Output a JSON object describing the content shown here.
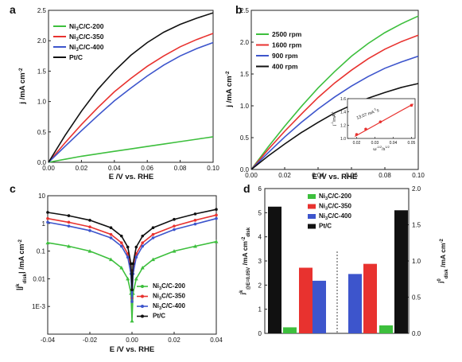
{
  "colors": {
    "green": "#3dbf3d",
    "red": "#e8322f",
    "blue": "#3d55cc",
    "black": "#111111"
  },
  "chart_data": [
    {
      "panel": "a",
      "type": "line",
      "xlabel": "E /V vs. RHE",
      "ylabel_parts": {
        "base": "j /mA cm",
        "sup": "-2"
      },
      "xlim": [
        0,
        0.1
      ],
      "ylim": [
        0,
        2.5
      ],
      "xticks": [
        "0.00",
        "0.02",
        "0.04",
        "0.06",
        "0.08",
        "0.10"
      ],
      "yticks": [
        "0.0",
        "0.5",
        "1.0",
        "1.5",
        "2.0",
        "2.5"
      ],
      "legend": "top-left",
      "series": [
        {
          "name_parts": [
            "Ni",
            "3",
            "C/C-200"
          ],
          "color": "#3dbf3d",
          "x": [
            0,
            0.01,
            0.02,
            0.03,
            0.04,
            0.05,
            0.06,
            0.07,
            0.08,
            0.09,
            0.1
          ],
          "y": [
            0,
            0.05,
            0.1,
            0.14,
            0.18,
            0.22,
            0.26,
            0.3,
            0.34,
            0.38,
            0.42
          ]
        },
        {
          "name_parts": [
            "Ni",
            "3",
            "C/C-350"
          ],
          "color": "#e8322f",
          "x": [
            0,
            0.01,
            0.02,
            0.03,
            0.04,
            0.05,
            0.06,
            0.07,
            0.08,
            0.09,
            0.1
          ],
          "y": [
            0,
            0.32,
            0.62,
            0.9,
            1.16,
            1.38,
            1.58,
            1.75,
            1.9,
            2.02,
            2.12
          ]
        },
        {
          "name_parts": [
            "Ni",
            "3",
            "C/C-400"
          ],
          "color": "#3d55cc",
          "x": [
            0,
            0.01,
            0.02,
            0.03,
            0.04,
            0.05,
            0.06,
            0.07,
            0.08,
            0.09,
            0.1
          ],
          "y": [
            0,
            0.26,
            0.52,
            0.77,
            1.01,
            1.22,
            1.42,
            1.6,
            1.75,
            1.87,
            1.97
          ]
        },
        {
          "name_parts": [
            "Pt/C"
          ],
          "color": "#111111",
          "x": [
            0,
            0.01,
            0.02,
            0.03,
            0.04,
            0.05,
            0.06,
            0.07,
            0.08,
            0.09,
            0.1
          ],
          "y": [
            0,
            0.44,
            0.84,
            1.2,
            1.5,
            1.76,
            1.97,
            2.14,
            2.27,
            2.37,
            2.46
          ]
        }
      ]
    },
    {
      "panel": "b",
      "type": "line",
      "xlabel": "E /V vs. RHE",
      "ylabel_parts": {
        "base": "j /mA cm",
        "sup": "-2"
      },
      "xlim": [
        0,
        0.1
      ],
      "ylim": [
        0,
        2.5
      ],
      "xticks": [
        "0.00",
        "0.02",
        "0.04",
        "0.06",
        "0.08",
        "0.10"
      ],
      "yticks": [
        "0.0",
        "0.5",
        "1.0",
        "1.5",
        "2.0",
        "2.5"
      ],
      "legend": "top-left",
      "series": [
        {
          "name_parts": [
            "2500 rpm"
          ],
          "color": "#3dbf3d",
          "x": [
            0,
            0.01,
            0.02,
            0.03,
            0.04,
            0.05,
            0.06,
            0.07,
            0.08,
            0.09,
            0.1
          ],
          "y": [
            0,
            0.35,
            0.68,
            0.99,
            1.28,
            1.54,
            1.78,
            1.98,
            2.15,
            2.29,
            2.41
          ]
        },
        {
          "name_parts": [
            "1600 rpm"
          ],
          "color": "#e8322f",
          "x": [
            0,
            0.01,
            0.02,
            0.03,
            0.04,
            0.05,
            0.06,
            0.07,
            0.08,
            0.09,
            0.1
          ],
          "y": [
            0,
            0.31,
            0.6,
            0.87,
            1.13,
            1.36,
            1.56,
            1.74,
            1.89,
            2.01,
            2.11
          ]
        },
        {
          "name_parts": [
            "900 rpm"
          ],
          "color": "#3d55cc",
          "x": [
            0,
            0.01,
            0.02,
            0.03,
            0.04,
            0.05,
            0.06,
            0.07,
            0.08,
            0.09,
            0.1
          ],
          "y": [
            0,
            0.26,
            0.51,
            0.74,
            0.95,
            1.14,
            1.31,
            1.46,
            1.59,
            1.69,
            1.78
          ]
        },
        {
          "name_parts": [
            "400 rpm"
          ],
          "color": "#111111",
          "x": [
            0,
            0.01,
            0.02,
            0.03,
            0.04,
            0.05,
            0.06,
            0.07,
            0.08,
            0.09,
            0.1
          ],
          "y": [
            0,
            0.21,
            0.4,
            0.58,
            0.74,
            0.89,
            1.01,
            1.12,
            1.21,
            1.29,
            1.35
          ]
        }
      ],
      "inset": {
        "type": "line",
        "annotation_parts": {
          "base": "13.07 mA",
          "sup": "-1",
          "rest": "s"
        },
        "xlabel_parts": {
          "base": "ω",
          "sup": "-1/2",
          "rest": "/s",
          "sup2": "1/2"
        },
        "ylabel_parts": {
          "base": "j",
          "sup": "-1",
          "rest": "/mA",
          "sup2": "-1"
        },
        "xlim": [
          0.015,
          0.052
        ],
        "ylim": [
          1.0,
          1.6
        ],
        "xticks": [
          "0.02",
          "0.03",
          "0.04",
          "0.05"
        ],
        "yticks": [
          "1.0",
          "1.2",
          "1.4",
          "1.6"
        ],
        "series": [
          {
            "color": "#e8322f",
            "x": [
              0.02,
              0.025,
              0.033,
              0.05
            ],
            "y": [
              1.06,
              1.14,
              1.25,
              1.5
            ]
          }
        ]
      }
    },
    {
      "panel": "c",
      "type": "line",
      "yscale": "log",
      "xlabel": "E /V vs. RHE",
      "ylabel_parts": {
        "base": "|j",
        "sup": "k",
        "rest": "| /mA cm",
        "sup2": "-2",
        "sub": "disk"
      },
      "xlim": [
        -0.04,
        0.04
      ],
      "ylim": [
        0.0001,
        10
      ],
      "xticks": [
        "-0.04",
        "-0.02",
        "0.00",
        "0.02",
        "0.04"
      ],
      "yticks": [
        "1E-3",
        "0.01",
        "0.1",
        "1",
        "10"
      ],
      "legend": "bottom-right",
      "series": [
        {
          "name_parts": [
            "Ni",
            "3",
            "C/C-200"
          ],
          "color": "#3dbf3d",
          "marker": "triangle",
          "x": [
            -0.04,
            -0.03,
            -0.02,
            -0.01,
            -0.005,
            -0.002,
            -0.0005,
            0,
            0.0005,
            0.002,
            0.005,
            0.01,
            0.02,
            0.03,
            0.04
          ],
          "y": [
            0.2,
            0.15,
            0.1,
            0.05,
            0.025,
            0.01,
            0.003,
            0.0003,
            0.003,
            0.01,
            0.025,
            0.05,
            0.1,
            0.15,
            0.22
          ]
        },
        {
          "name_parts": [
            "Ni",
            "3",
            "C/C-350"
          ],
          "color": "#e8322f",
          "marker": "circle",
          "x": [
            -0.04,
            -0.03,
            -0.02,
            -0.01,
            -0.005,
            -0.002,
            -0.0005,
            0,
            0.0005,
            0.002,
            0.005,
            0.01,
            0.02,
            0.03,
            0.04
          ],
          "y": [
            1.5,
            1.1,
            0.75,
            0.4,
            0.2,
            0.08,
            0.02,
            0.002,
            0.02,
            0.08,
            0.2,
            0.4,
            0.8,
            1.3,
            2.0
          ]
        },
        {
          "name_parts": [
            "Ni",
            "3",
            "C/C-400"
          ],
          "color": "#3d55cc",
          "marker": "circle",
          "x": [
            -0.04,
            -0.03,
            -0.02,
            -0.01,
            -0.005,
            -0.002,
            -0.0005,
            0,
            0.0005,
            0.002,
            0.005,
            0.01,
            0.02,
            0.03,
            0.04
          ],
          "y": [
            1.1,
            0.8,
            0.55,
            0.3,
            0.15,
            0.06,
            0.015,
            0.0015,
            0.015,
            0.06,
            0.15,
            0.3,
            0.6,
            0.95,
            1.5
          ]
        },
        {
          "name_parts": [
            "Pt/C"
          ],
          "color": "#111111",
          "marker": "circle",
          "x": [
            -0.04,
            -0.03,
            -0.02,
            -0.01,
            -0.005,
            -0.002,
            -0.0005,
            0,
            0.0005,
            0.002,
            0.005,
            0.01,
            0.02,
            0.03,
            0.04
          ],
          "y": [
            2.5,
            1.9,
            1.3,
            0.7,
            0.35,
            0.14,
            0.035,
            0.004,
            0.035,
            0.14,
            0.35,
            0.7,
            1.4,
            2.2,
            3.2
          ]
        }
      ]
    },
    {
      "panel": "d",
      "type": "bar",
      "ylabel_left_parts": {
        "base": "j",
        "sup": "k",
        "sub": "@E=0.05V",
        "rest": " /mA cm",
        "sup2": "-2",
        "sub2": "disk"
      },
      "ylabel_right_parts": {
        "base": "j",
        "sup": "0",
        "rest": " /mA cm",
        "sup2": "-2",
        "sub": "disk"
      },
      "ylim_left": [
        0,
        6
      ],
      "ylim_right": [
        0,
        2.0
      ],
      "yticks_left": [
        "0",
        "1",
        "2",
        "3",
        "4",
        "5",
        "6"
      ],
      "yticks_right": [
        "0.0",
        "0.5",
        "1.0",
        "1.5",
        "2.0"
      ],
      "legend": "top-center",
      "groups": [
        {
          "axis": "left",
          "categories": [
            "Pt/C",
            "Ni3C/C-200",
            "Ni3C/C-350",
            "Ni3C/C-400"
          ],
          "values": [
            5.25,
            0.25,
            2.72,
            2.18
          ],
          "colors": [
            "#111111",
            "#3dbf3d",
            "#e8322f",
            "#3d55cc"
          ]
        },
        {
          "axis": "right",
          "categories": [
            "Ni3C/C-400",
            "Ni3C/C-350",
            "Ni3C/C-200",
            "Pt/C"
          ],
          "values": [
            0.82,
            0.96,
            0.11,
            1.7
          ],
          "colors": [
            "#3d55cc",
            "#e8322f",
            "#3dbf3d",
            "#111111"
          ]
        }
      ],
      "legend_entries": [
        {
          "name_parts": [
            "Ni",
            "3",
            "C/C-200"
          ],
          "color": "#3dbf3d"
        },
        {
          "name_parts": [
            "Ni",
            "3",
            "C/C-350"
          ],
          "color": "#e8322f"
        },
        {
          "name_parts": [
            "Ni",
            "3",
            "C/C-400"
          ],
          "color": "#3d55cc"
        },
        {
          "name_parts": [
            "Pt/C"
          ],
          "color": "#111111"
        }
      ]
    }
  ]
}
